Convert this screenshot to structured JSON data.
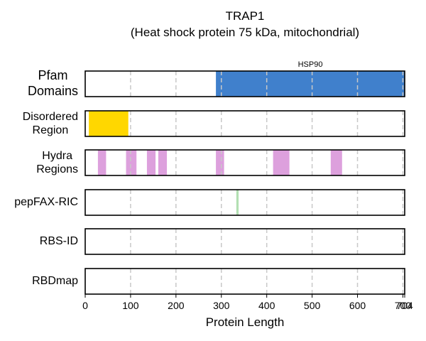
{
  "chart_data": {
    "type": "track",
    "title": "TRAP1",
    "subtitle": "(Heat shock protein 75 kDa, mitochondrial)",
    "xlabel": "Protein Length",
    "xlim": [
      0,
      704
    ],
    "xticks": [
      0,
      100,
      200,
      300,
      400,
      500,
      600,
      700,
      704
    ],
    "grid": true,
    "tracks": [
      {
        "label": "Pfam\nDomains",
        "color": "#4080CC",
        "segments": [
          {
            "start": 288,
            "end": 704,
            "label": "HSP90"
          }
        ]
      },
      {
        "label": "Disordered\nRegion",
        "color": "#FFD700",
        "segments": [
          {
            "start": 8,
            "end": 95
          }
        ]
      },
      {
        "label": "Hydra\nRegions",
        "color": "#DDA0DD",
        "segments": [
          {
            "start": 28,
            "end": 46
          },
          {
            "start": 90,
            "end": 113
          },
          {
            "start": 136,
            "end": 155
          },
          {
            "start": 161,
            "end": 180
          },
          {
            "start": 288,
            "end": 306
          },
          {
            "start": 414,
            "end": 450
          },
          {
            "start": 541,
            "end": 566
          }
        ]
      },
      {
        "label": "pepFAX-RIC",
        "color": "#B3E0B3",
        "segments": [
          {
            "start": 333,
            "end": 338
          }
        ]
      },
      {
        "label": "RBS-ID",
        "color": "#999999",
        "segments": []
      },
      {
        "label": "RBDmap",
        "color": "#999999",
        "segments": []
      }
    ]
  }
}
